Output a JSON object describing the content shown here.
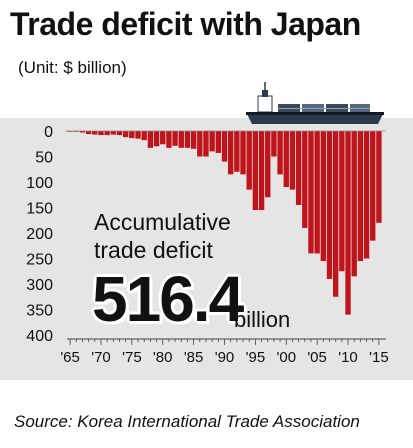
{
  "title": "Trade deficit with Japan",
  "unit": "(Unit: $ billion)",
  "source": "Source: Korea International Trade Association",
  "accumulative": {
    "label_line1": "Accumulative",
    "label_line2": "trade deficit",
    "value": "516.4",
    "unit": "billion"
  },
  "colors": {
    "bar": "#c0141b",
    "panel": "#e5e5e5"
  },
  "chart_data": {
    "type": "bar",
    "orientation": "downward",
    "ylim": [
      0,
      400
    ],
    "yticks": [
      "0",
      "50",
      "100",
      "150",
      "200",
      "250",
      "300",
      "350",
      "400"
    ],
    "xticks": [
      "'65",
      "'70",
      "'75",
      "'80",
      "'85",
      "'90",
      "'95",
      "'00",
      "'05",
      "'10",
      "'15"
    ],
    "x": [
      1965,
      1966,
      1967,
      1968,
      1969,
      1970,
      1971,
      1972,
      1973,
      1974,
      1975,
      1976,
      1977,
      1978,
      1979,
      1980,
      1981,
      1982,
      1983,
      1984,
      1985,
      1986,
      1987,
      1988,
      1989,
      1990,
      1991,
      1992,
      1993,
      1994,
      1995,
      1996,
      1997,
      1998,
      1999,
      2000,
      2001,
      2002,
      2003,
      2004,
      2005,
      2006,
      2007,
      2008,
      2009,
      2010,
      2011,
      2012,
      2013,
      2014,
      2015
    ],
    "values": [
      1,
      1,
      3,
      6,
      7,
      8,
      8,
      7,
      8,
      12,
      14,
      15,
      18,
      33,
      30,
      26,
      33,
      29,
      33,
      33,
      35,
      50,
      50,
      40,
      43,
      60,
      85,
      80,
      85,
      115,
      155,
      155,
      130,
      50,
      85,
      110,
      115,
      145,
      190,
      240,
      240,
      255,
      290,
      325,
      275,
      360,
      285,
      255,
      250,
      215,
      180
    ],
    "annotation": "Accumulative trade deficit 516.4 billion"
  }
}
